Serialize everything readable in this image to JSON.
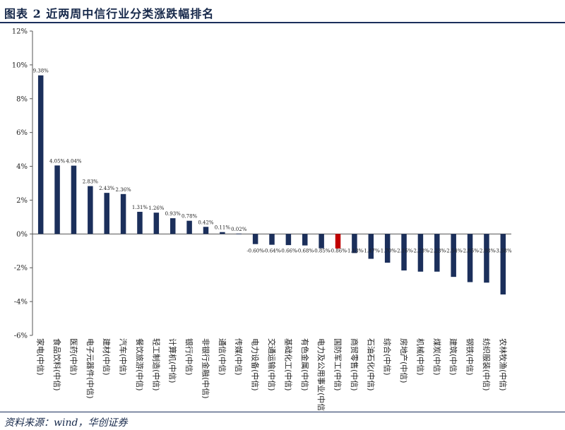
{
  "header": {
    "title": "图表 2    近两周中信行业分类涨跌幅排名"
  },
  "footer": {
    "source": "资料来源：wind，华创证券"
  },
  "colors": {
    "bar": "#1b2f5b",
    "highlight": "#c00000",
    "rule": "#1b2f5b"
  },
  "chart_data": {
    "type": "bar",
    "title": "",
    "xlabel": "",
    "ylabel": "",
    "ylim": [
      -6,
      12
    ],
    "yticks": [
      -6,
      -4,
      -2,
      0,
      2,
      4,
      6,
      8,
      10,
      12
    ],
    "ytick_labels": [
      "-6%",
      "-4%",
      "-2%",
      "0%",
      "2%",
      "4%",
      "6%",
      "8%",
      "10%",
      "12%"
    ],
    "grid": false,
    "highlight_index": 18,
    "categories": [
      "家电(中信)",
      "食品饮料(中信)",
      "医药(中信)",
      "电子元器件(中信)",
      "建材(中信)",
      "汽车(中信)",
      "餐饮旅游(中信)",
      "轻工制造(中信)",
      "计算机(中信)",
      "银行(中信)",
      "非银行金融(中信)",
      "通信(中信)",
      "传媒(中信)",
      "电力设备(中信)",
      "交通运输(中信)",
      "基础化工(中信)",
      "有色金属(中信)",
      "电力及公用事业(中信)",
      "国防军工(中信)",
      "商贸零售(中信)",
      "石油石化(中信)",
      "综合(中信)",
      "房地产(中信)",
      "机械(中信)",
      "煤炭(中信)",
      "建筑(中信)",
      "钢铁(中信)",
      "纺织服装(中信)",
      "农林牧渔(中信)"
    ],
    "values": [
      9.38,
      4.05,
      4.04,
      2.83,
      2.43,
      2.36,
      1.31,
      1.26,
      0.93,
      0.78,
      0.42,
      0.11,
      0.02,
      -0.6,
      -0.64,
      -0.66,
      -0.68,
      -0.85,
      -0.86,
      -1.13,
      -1.47,
      -1.7,
      -2.16,
      -2.23,
      -2.23,
      -2.54,
      -2.85,
      -2.88,
      -3.58
    ],
    "value_labels": [
      "9.38%",
      "4.05%",
      "4.04%",
      "2.83%",
      "2.43%",
      "2.36%",
      "1.31%",
      "1.26%",
      "0.93%",
      "0.78%",
      "0.42%",
      "0.11%",
      "0.02%",
      "-0.60%",
      "-0.64%",
      "-0.66%",
      "-0.68%",
      "-0.85%",
      "-0.86%",
      "-1.13%",
      "-1.47%",
      "-1.70%",
      "-2.16%",
      "-2.23%",
      "-2.23%",
      "-2.54%",
      "-2.85%",
      "-2.88%",
      "-3.58%"
    ]
  }
}
